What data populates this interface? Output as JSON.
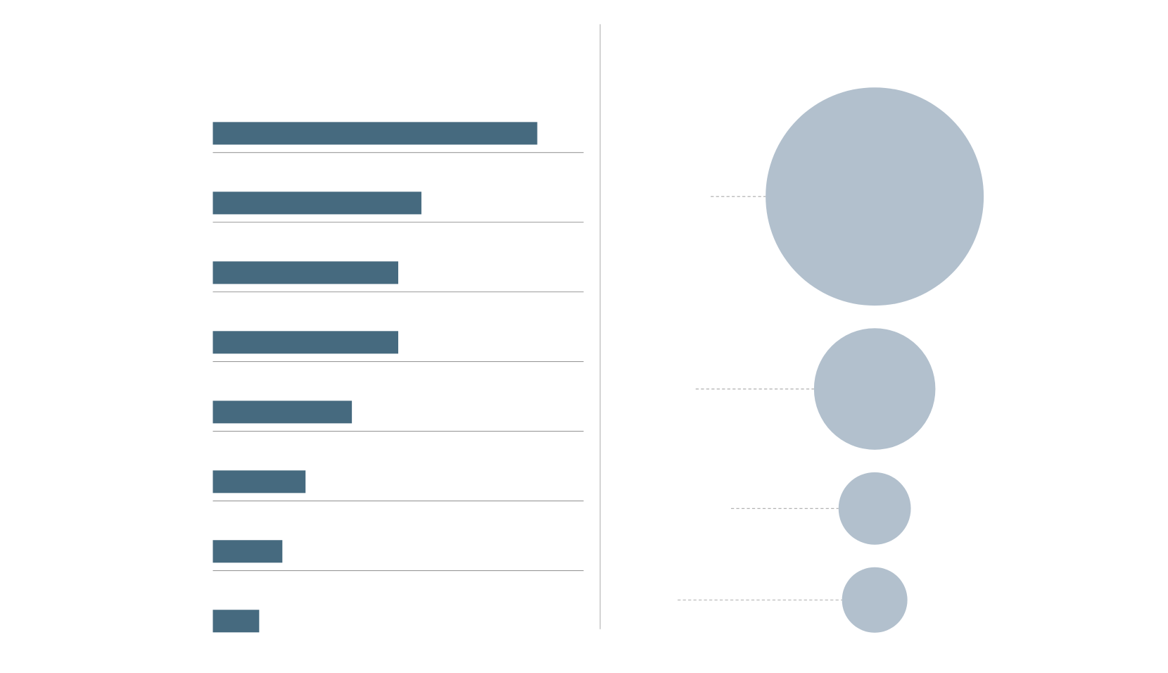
{
  "chart_data": [
    {
      "type": "bar",
      "orientation": "horizontal",
      "values": [
        14,
        9,
        8,
        8,
        6,
        4,
        3,
        2
      ],
      "color": "#466a7f",
      "xlim": [
        0,
        16
      ],
      "separators": true
    },
    {
      "type": "circle",
      "values": [
        100,
        31,
        11,
        9
      ],
      "color": "#b2c0cd",
      "leaders": true
    }
  ]
}
